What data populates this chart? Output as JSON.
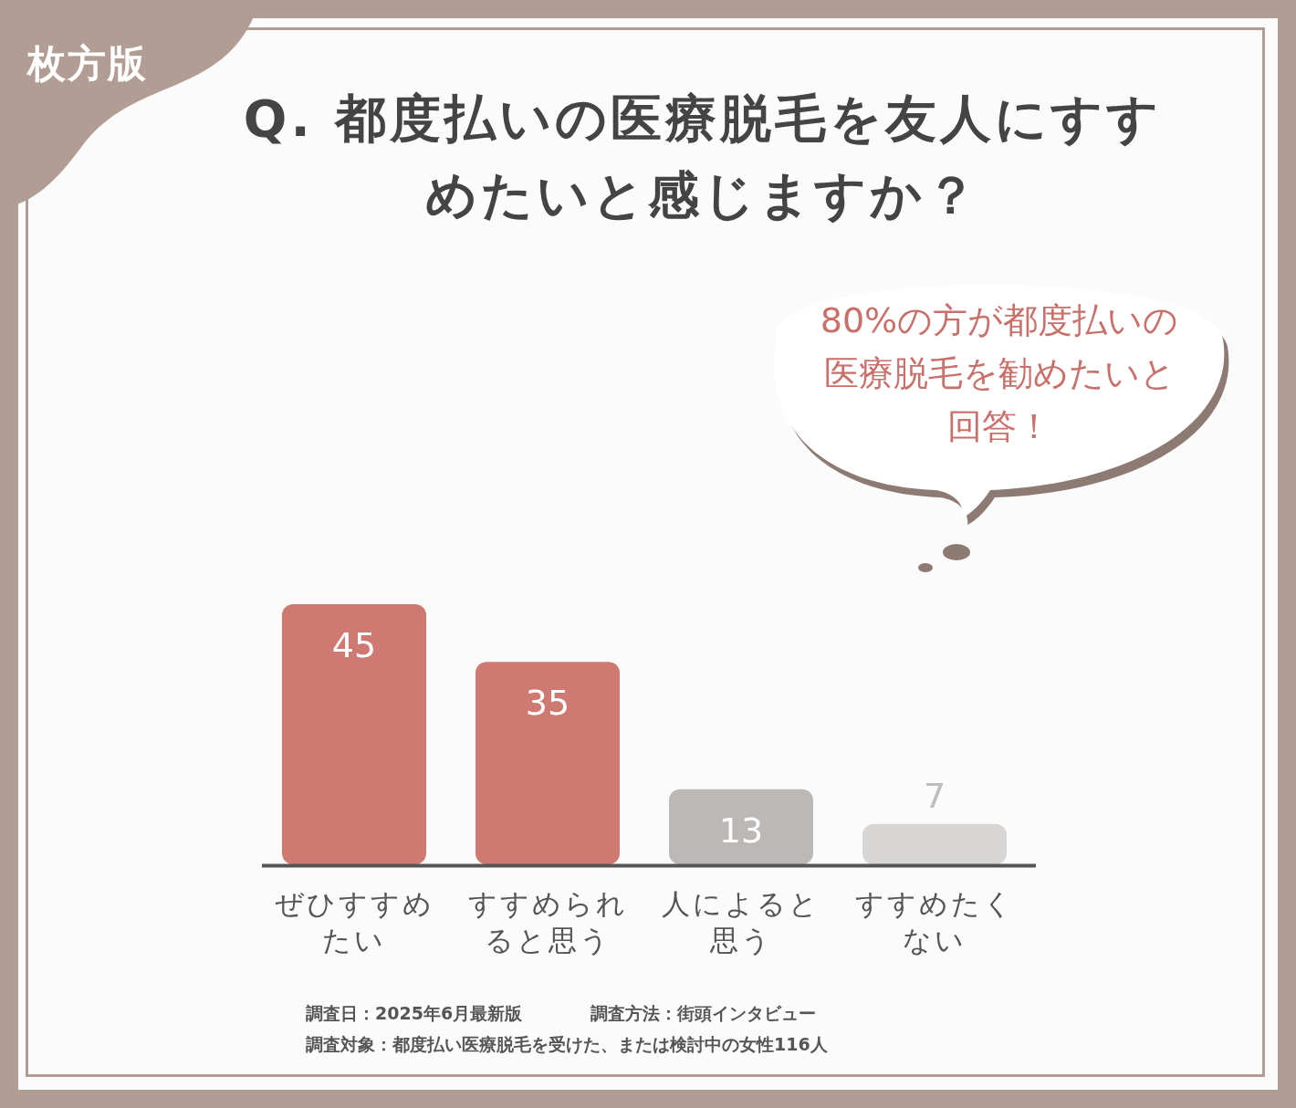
{
  "chart_data": {
    "type": "bar",
    "title": "Q. 都度払いの医療脱毛を友人にすすめたいと感じますか？",
    "categories": [
      "ぜひすすめたい",
      "すすめられると思う",
      "人によると思う",
      "すすめたくない"
    ],
    "values": [
      45,
      35,
      13,
      7
    ],
    "colors": [
      "#cf7973",
      "#cf7973",
      "#bcb8b6",
      "#d8d6d5"
    ],
    "data_labels": true,
    "annotations": [
      "枚方版",
      "80%の方が都度払いの医療脱毛を勧めたいと回答！",
      "調査日：2025年6月最新版",
      "調査方法：街頭インタビュー",
      "調査対象：都度払い医療脱毛を受けた、または検討中の女性116人"
    ]
  }
}
